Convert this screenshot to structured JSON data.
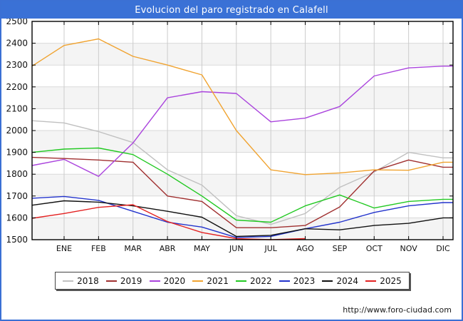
{
  "title": "Evolucion del paro registrado en Calafell",
  "footer": {
    "url": "http://www.foro-ciudad.com"
  },
  "colors": {
    "header_bg": "#3a71d6",
    "outer_border": "#3b70d4",
    "plot_border": "#000000",
    "grid": "#cccccc",
    "band": "#f4f4f4",
    "text": "#111111"
  },
  "chart_data": {
    "type": "line",
    "title": "Evolucion del paro registrado en Calafell",
    "categories": [
      "ENE",
      "FEB",
      "MAR",
      "ABR",
      "MAY",
      "JUN",
      "JUL",
      "AGO",
      "SEP",
      "OCT",
      "NOV",
      "DIC"
    ],
    "ylim": [
      1500,
      2500
    ],
    "ytick_step": 100,
    "grid": true,
    "legend_position": "bottom",
    "note_start": "each line begins at the plot left edge with a pre-January value",
    "series": [
      {
        "name": "2018",
        "color": "#c0c0c0",
        "start": 2045,
        "values": [
          2035,
          1995,
          1945,
          1820,
          1750,
          1610,
          1570,
          1620,
          1740,
          1810,
          1900,
          1875
        ]
      },
      {
        "name": "2019",
        "color": "#a03030",
        "start": 1877,
        "values": [
          1872,
          1865,
          1855,
          1700,
          1675,
          1555,
          1555,
          1565,
          1650,
          1815,
          1865,
          1832
        ]
      },
      {
        "name": "2020",
        "color": "#aa44dd",
        "start": 1840,
        "values": [
          1868,
          1790,
          1943,
          2150,
          2178,
          2170,
          2040,
          2057,
          2110,
          2250,
          2287,
          2295
        ]
      },
      {
        "name": "2021",
        "color": "#f0a330",
        "start": 2295,
        "values": [
          2390,
          2420,
          2340,
          2300,
          2255,
          2000,
          1820,
          1798,
          1806,
          1820,
          1818,
          1855
        ]
      },
      {
        "name": "2022",
        "color": "#22c922",
        "start": 1900,
        "values": [
          1915,
          1920,
          1890,
          1800,
          1700,
          1590,
          1580,
          1655,
          1705,
          1645,
          1675,
          1685
        ]
      },
      {
        "name": "2023",
        "color": "#2233cc",
        "start": 1690,
        "values": [
          1698,
          1680,
          1630,
          1580,
          1558,
          1510,
          1515,
          1550,
          1580,
          1625,
          1655,
          1670
        ]
      },
      {
        "name": "2024",
        "color": "#111111",
        "start": 1658,
        "values": [
          1678,
          1672,
          1655,
          1630,
          1603,
          1515,
          1520,
          1550,
          1545,
          1565,
          1575,
          1600
        ]
      },
      {
        "name": "2025",
        "color": "#e32222",
        "start": 1598,
        "values": [
          1620,
          1648,
          1660,
          1583,
          1533,
          1505,
          1500,
          1505
        ]
      }
    ]
  }
}
